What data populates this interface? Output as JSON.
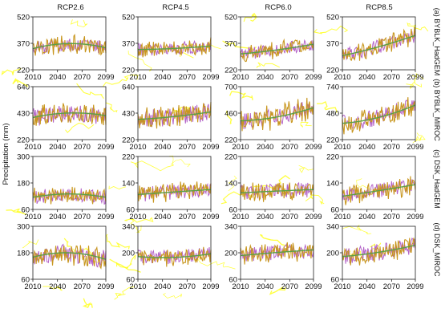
{
  "figure": {
    "y_axis_label": "Precipitation (mm)",
    "column_titles": [
      "RCP2.6",
      "RCP4.5",
      "RCP6.0",
      "RCP8.5"
    ],
    "row_labels": [
      "(a) BYBLK_HadGEM",
      "(b) BYBLK_MIROC",
      "(c) DSK_HadGEM",
      "(d) DSK_MIROC"
    ],
    "x_tick_labels": [
      "2010",
      "2040",
      "2070",
      "2099"
    ],
    "colors": {
      "series_main": "#c8961e",
      "series_overlay": "#b464c8",
      "trend": "#5aa046",
      "noise": "#ffff00",
      "axis": "#222222"
    }
  },
  "chart_data": {
    "type": "line",
    "layout": "4x4 small multiples (rows = station_model, columns = scenario)",
    "x": {
      "start": 2010,
      "end": 2099,
      "ticks": [
        2010,
        2040,
        2070,
        2099
      ]
    },
    "ylabel": "Precipitation (mm)",
    "note": "Each panel shows an annual precipitation series (values approximate, sampled each year 2010-2099) with a smooth trend curve.",
    "panels": [
      {
        "row": "(a) BYBLK_HadGEM",
        "scenario": "RCP2.6",
        "ylim": [
          220,
          520
        ],
        "yticks": [
          220,
          370,
          520
        ],
        "trend_at": {
          "2010": 340,
          "2050": 368,
          "2099": 345
        },
        "series_mean": 350,
        "series_amplitude": 45
      },
      {
        "row": "(a) BYBLK_HadGEM",
        "scenario": "RCP4.5",
        "ylim": [
          220,
          520
        ],
        "yticks": [
          220,
          370,
          520
        ],
        "trend_at": {
          "2010": 335,
          "2050": 340,
          "2099": 355
        },
        "series_mean": 345,
        "series_amplitude": 40
      },
      {
        "row": "(a) BYBLK_HadGEM",
        "scenario": "RCP6.0",
        "ylim": [
          220,
          520
        ],
        "yticks": [
          220,
          370,
          520
        ],
        "trend_at": {
          "2010": 310,
          "2050": 330,
          "2099": 365
        },
        "series_mean": 335,
        "series_amplitude": 40
      },
      {
        "row": "(a) BYBLK_HadGEM",
        "scenario": "RCP8.5",
        "ylim": [
          220,
          520
        ],
        "yticks": [
          220,
          370,
          520
        ],
        "trend_at": {
          "2010": 300,
          "2050": 345,
          "2099": 415
        },
        "series_mean": 355,
        "series_amplitude": 45
      },
      {
        "row": "(b) BYBLK_MIROC",
        "scenario": "RCP2.6",
        "ylim": [
          220,
          640
        ],
        "yticks": [
          220,
          430,
          640
        ],
        "trend_at": {
          "2010": 395,
          "2050": 430,
          "2099": 410
        },
        "series_mean": 420,
        "series_amplitude": 80
      },
      {
        "row": "(b) BYBLK_MIROC",
        "scenario": "RCP4.5",
        "ylim": [
          220,
          640
        ],
        "yticks": [
          220,
          430,
          640
        ],
        "trend_at": {
          "2010": 380,
          "2050": 400,
          "2099": 440
        },
        "series_mean": 410,
        "series_amplitude": 80
      },
      {
        "row": "(b) BYBLK_MIROC",
        "scenario": "RCP6.0",
        "ylim": [
          220,
          700
        ],
        "yticks": [
          220,
          460,
          700
        ],
        "trend_at": {
          "2010": 390,
          "2050": 420,
          "2099": 510
        },
        "series_mean": 440,
        "series_amplitude": 90
      },
      {
        "row": "(b) BYBLK_MIROC",
        "scenario": "RCP8.5",
        "ylim": [
          220,
          740
        ],
        "yticks": [
          220,
          480,
          740
        ],
        "trend_at": {
          "2010": 380,
          "2050": 430,
          "2099": 560
        },
        "series_mean": 460,
        "series_amplitude": 90
      },
      {
        "row": "(c) DSK_HadGEM",
        "scenario": "RCP2.6",
        "ylim": [
          60,
          300
        ],
        "yticks": [
          60,
          180,
          300
        ],
        "trend_at": {
          "2010": 115,
          "2050": 130,
          "2099": 115
        },
        "series_mean": 120,
        "series_amplitude": 35
      },
      {
        "row": "(c) DSK_HadGEM",
        "scenario": "RCP4.5",
        "ylim": [
          60,
          220
        ],
        "yticks": [
          60,
          140,
          220
        ],
        "trend_at": {
          "2010": 105,
          "2050": 112,
          "2099": 120
        },
        "series_mean": 112,
        "series_amplitude": 25
      },
      {
        "row": "(c) DSK_HadGEM",
        "scenario": "RCP6.0",
        "ylim": [
          60,
          220
        ],
        "yticks": [
          60,
          140,
          220
        ],
        "trend_at": {
          "2010": 110,
          "2050": 115,
          "2099": 120
        },
        "series_mean": 115,
        "series_amplitude": 25
      },
      {
        "row": "(c) DSK_HadGEM",
        "scenario": "RCP8.5",
        "ylim": [
          60,
          220
        ],
        "yticks": [
          60,
          140,
          220
        ],
        "trend_at": {
          "2010": 100,
          "2050": 115,
          "2099": 135
        },
        "series_mean": 115,
        "series_amplitude": 25
      },
      {
        "row": "(d) DSK_MIROC",
        "scenario": "RCP2.6",
        "ylim": [
          60,
          300
        ],
        "yticks": [
          60,
          180,
          300
        ],
        "trend_at": {
          "2010": 160,
          "2050": 180,
          "2099": 150
        },
        "series_mean": 170,
        "series_amplitude": 45
      },
      {
        "row": "(d) DSK_MIROC",
        "scenario": "RCP4.5",
        "ylim": [
          60,
          340
        ],
        "yticks": [
          60,
          200,
          340
        ],
        "trend_at": {
          "2010": 180,
          "2050": 175,
          "2099": 195
        },
        "series_mean": 185,
        "series_amplitude": 40
      },
      {
        "row": "(d) DSK_MIROC",
        "scenario": "RCP6.0",
        "ylim": [
          60,
          340
        ],
        "yticks": [
          60,
          200,
          340
        ],
        "trend_at": {
          "2010": 185,
          "2050": 200,
          "2099": 215
        },
        "series_mean": 200,
        "series_amplitude": 45
      },
      {
        "row": "(d) DSK_MIROC",
        "scenario": "RCP8.5",
        "ylim": [
          60,
          340
        ],
        "yticks": [
          60,
          200,
          340
        ],
        "trend_at": {
          "2010": 180,
          "2050": 200,
          "2099": 240
        },
        "series_mean": 205,
        "series_amplitude": 50
      }
    ]
  }
}
